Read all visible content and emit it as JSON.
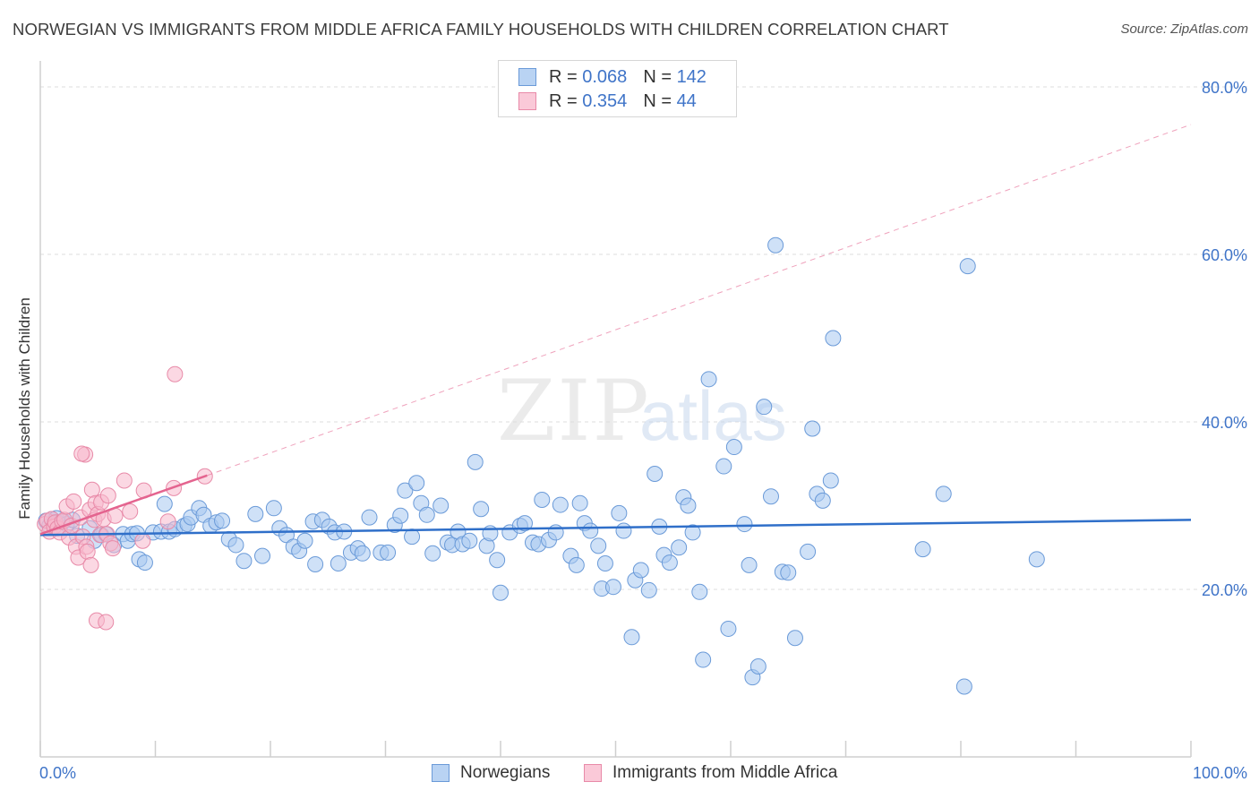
{
  "title": "NORWEGIAN VS IMMIGRANTS FROM MIDDLE AFRICA FAMILY HOUSEHOLDS WITH CHILDREN CORRELATION CHART",
  "source": "Source: ZipAtlas.com",
  "watermark": {
    "zip": "ZIP",
    "atlas": "atlas"
  },
  "legend": {
    "rows": [
      {
        "r_label": "R = ",
        "r_value": "0.068",
        "n_label": "N = ",
        "n_value": "142"
      },
      {
        "r_label": "R = ",
        "r_value": "0.354",
        "n_label": "N = ",
        "n_value": " 44"
      }
    ]
  },
  "bottom_legend": {
    "series1": "Norwegians",
    "series2": "Immigrants from Middle Africa"
  },
  "colors": {
    "blue_fill": "#a8c8f0",
    "blue_stroke": "#6a9ad8",
    "blue_line": "#2f6fc9",
    "pink_fill": "#f7b8cc",
    "pink_stroke": "#e88aa8",
    "pink_line": "#e4648f",
    "axis_text": "#3f74c8",
    "grid": "#dcdcdc"
  },
  "chart_data": {
    "type": "scatter",
    "title": "NORWEGIAN VS IMMIGRANTS FROM MIDDLE AFRICA FAMILY HOUSEHOLDS WITH CHILDREN CORRELATION CHART",
    "xlabel": "",
    "ylabel": "Family Households with Children",
    "xlim": [
      0,
      100
    ],
    "ylim": [
      0,
      82
    ],
    "x_tick_labels": [
      "0.0%",
      "100.0%"
    ],
    "y_ticks": [
      20,
      40,
      60,
      80
    ],
    "y_tick_labels": [
      "20.0%",
      "40.0%",
      "60.0%",
      "80.0%"
    ],
    "grid": true,
    "series": [
      {
        "name": "Norwegians",
        "color": "blue",
        "R": 0.068,
        "N": 142,
        "trend": {
          "x": [
            0,
            100
          ],
          "y": [
            26.5,
            28.3
          ],
          "style": "solid"
        },
        "points": [
          [
            0.5,
            28.2
          ],
          [
            0.8,
            27.6
          ],
          [
            1.0,
            28.4
          ],
          [
            1.2,
            27.9
          ],
          [
            1.4,
            28.5
          ],
          [
            1.5,
            28.0
          ],
          [
            1.7,
            27.4
          ],
          [
            2.0,
            28.1
          ],
          [
            2.3,
            27.8
          ],
          [
            2.8,
            28.3
          ],
          [
            3.2,
            26.4
          ],
          [
            4.3,
            27.3
          ],
          [
            4.7,
            25.8
          ],
          [
            5.3,
            26.5
          ],
          [
            5.7,
            26.6
          ],
          [
            6.4,
            25.3
          ],
          [
            7.2,
            26.6
          ],
          [
            7.6,
            25.8
          ],
          [
            8.0,
            26.6
          ],
          [
            8.4,
            26.7
          ],
          [
            8.6,
            23.6
          ],
          [
            9.1,
            23.2
          ],
          [
            9.8,
            26.8
          ],
          [
            10.5,
            26.9
          ],
          [
            10.8,
            30.2
          ],
          [
            11.2,
            26.9
          ],
          [
            11.7,
            27.2
          ],
          [
            12.5,
            27.6
          ],
          [
            12.8,
            27.8
          ],
          [
            13.1,
            28.6
          ],
          [
            13.8,
            29.7
          ],
          [
            14.2,
            28.9
          ],
          [
            14.8,
            27.6
          ],
          [
            15.3,
            28.0
          ],
          [
            15.8,
            28.2
          ],
          [
            16.4,
            26.0
          ],
          [
            17.0,
            25.3
          ],
          [
            17.7,
            23.4
          ],
          [
            18.7,
            29.0
          ],
          [
            19.3,
            24.0
          ],
          [
            20.3,
            29.7
          ],
          [
            20.8,
            27.3
          ],
          [
            21.4,
            26.5
          ],
          [
            22.0,
            25.1
          ],
          [
            22.5,
            24.6
          ],
          [
            23.0,
            25.8
          ],
          [
            23.7,
            28.1
          ],
          [
            23.9,
            23.0
          ],
          [
            24.5,
            28.3
          ],
          [
            25.1,
            27.5
          ],
          [
            25.6,
            26.8
          ],
          [
            25.9,
            23.1
          ],
          [
            26.4,
            26.9
          ],
          [
            27.0,
            24.4
          ],
          [
            27.6,
            24.9
          ],
          [
            28.0,
            24.3
          ],
          [
            28.6,
            28.6
          ],
          [
            29.6,
            24.4
          ],
          [
            30.2,
            24.4
          ],
          [
            30.8,
            27.7
          ],
          [
            31.3,
            28.8
          ],
          [
            31.7,
            31.8
          ],
          [
            32.3,
            26.3
          ],
          [
            32.7,
            32.7
          ],
          [
            33.1,
            30.3
          ],
          [
            33.6,
            28.9
          ],
          [
            34.1,
            24.3
          ],
          [
            34.8,
            30.0
          ],
          [
            35.4,
            25.6
          ],
          [
            35.8,
            25.3
          ],
          [
            36.3,
            26.9
          ],
          [
            36.7,
            25.4
          ],
          [
            37.3,
            25.8
          ],
          [
            37.8,
            35.2
          ],
          [
            38.3,
            29.6
          ],
          [
            38.8,
            25.2
          ],
          [
            39.1,
            26.7
          ],
          [
            39.7,
            23.5
          ],
          [
            40.0,
            19.6
          ],
          [
            40.8,
            26.8
          ],
          [
            41.7,
            27.6
          ],
          [
            42.1,
            27.9
          ],
          [
            42.8,
            25.6
          ],
          [
            43.3,
            25.4
          ],
          [
            43.6,
            30.7
          ],
          [
            44.2,
            25.9
          ],
          [
            44.8,
            26.8
          ],
          [
            45.2,
            30.1
          ],
          [
            46.1,
            24.0
          ],
          [
            46.6,
            22.9
          ],
          [
            46.9,
            30.3
          ],
          [
            47.3,
            27.9
          ],
          [
            47.8,
            27.0
          ],
          [
            48.5,
            25.2
          ],
          [
            48.8,
            20.1
          ],
          [
            49.1,
            23.1
          ],
          [
            49.8,
            20.3
          ],
          [
            50.3,
            29.1
          ],
          [
            50.7,
            27.0
          ],
          [
            51.4,
            14.3
          ],
          [
            51.7,
            21.1
          ],
          [
            52.2,
            22.3
          ],
          [
            52.9,
            19.9
          ],
          [
            53.4,
            33.8
          ],
          [
            53.8,
            27.5
          ],
          [
            54.2,
            24.1
          ],
          [
            54.7,
            23.2
          ],
          [
            55.5,
            25.0
          ],
          [
            55.9,
            31.0
          ],
          [
            56.3,
            30.0
          ],
          [
            56.7,
            26.8
          ],
          [
            57.3,
            19.7
          ],
          [
            57.6,
            11.6
          ],
          [
            58.1,
            45.1
          ],
          [
            59.4,
            34.7
          ],
          [
            59.8,
            15.3
          ],
          [
            60.3,
            37.0
          ],
          [
            61.2,
            27.8
          ],
          [
            61.6,
            22.9
          ],
          [
            61.9,
            9.5
          ],
          [
            62.4,
            10.8
          ],
          [
            62.9,
            41.8
          ],
          [
            63.5,
            31.1
          ],
          [
            63.9,
            61.1
          ],
          [
            64.5,
            22.1
          ],
          [
            65.0,
            22.0
          ],
          [
            65.6,
            14.2
          ],
          [
            66.7,
            24.5
          ],
          [
            67.1,
            39.2
          ],
          [
            67.5,
            31.4
          ],
          [
            68.0,
            30.6
          ],
          [
            68.7,
            33.0
          ],
          [
            68.9,
            50.0
          ],
          [
            76.7,
            24.8
          ],
          [
            78.5,
            31.4
          ],
          [
            80.3,
            8.4
          ],
          [
            80.6,
            58.6
          ],
          [
            86.6,
            23.6
          ]
        ]
      },
      {
        "name": "Immigrants from Middle Africa",
        "color": "pink",
        "R": 0.354,
        "N": 44,
        "trend": {
          "x": [
            0,
            14.5
          ],
          "y": [
            26.6,
            33.6
          ],
          "style": "solid",
          "extension": {
            "x": [
              14.5,
              100
            ],
            "y": [
              33.6,
              75.5
            ],
            "style": "dashed"
          }
        },
        "points": [
          [
            0.4,
            27.8
          ],
          [
            0.6,
            28.2
          ],
          [
            0.8,
            26.9
          ],
          [
            1.0,
            28.4
          ],
          [
            1.2,
            27.5
          ],
          [
            1.3,
            28.0
          ],
          [
            1.5,
            27.3
          ],
          [
            1.7,
            26.8
          ],
          [
            1.9,
            28.1
          ],
          [
            2.1,
            28.3
          ],
          [
            2.3,
            29.9
          ],
          [
            2.5,
            26.2
          ],
          [
            2.7,
            27.6
          ],
          [
            2.9,
            30.5
          ],
          [
            3.1,
            25.1
          ],
          [
            3.3,
            23.8
          ],
          [
            3.5,
            28.6
          ],
          [
            3.7,
            26.3
          ],
          [
            3.9,
            36.1
          ],
          [
            4.0,
            25.1
          ],
          [
            4.1,
            24.5
          ],
          [
            4.3,
            29.5
          ],
          [
            4.4,
            22.9
          ],
          [
            4.5,
            31.9
          ],
          [
            4.7,
            28.3
          ],
          [
            4.8,
            30.3
          ],
          [
            4.9,
            16.3
          ],
          [
            5.0,
            29.0
          ],
          [
            5.2,
            26.5
          ],
          [
            5.3,
            30.4
          ],
          [
            5.5,
            28.4
          ],
          [
            5.7,
            16.1
          ],
          [
            5.8,
            26.6
          ],
          [
            5.9,
            31.2
          ],
          [
            6.1,
            25.5
          ],
          [
            6.3,
            24.9
          ],
          [
            6.5,
            28.8
          ],
          [
            7.3,
            33.0
          ],
          [
            7.8,
            29.3
          ],
          [
            8.9,
            25.8
          ],
          [
            9.0,
            31.8
          ],
          [
            11.1,
            28.1
          ],
          [
            11.6,
            32.1
          ],
          [
            14.3,
            33.5
          ],
          [
            11.7,
            45.7
          ],
          [
            3.6,
            36.2
          ]
        ]
      }
    ]
  }
}
